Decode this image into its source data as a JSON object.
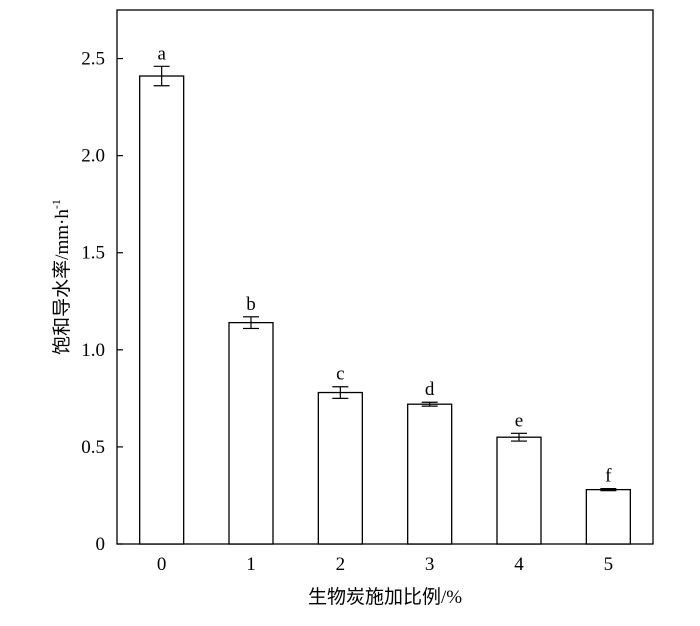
{
  "chart_data": {
    "type": "bar",
    "categories": [
      "0",
      "1",
      "2",
      "3",
      "4",
      "5"
    ],
    "values": [
      2.41,
      1.14,
      0.78,
      0.72,
      0.55,
      0.28
    ],
    "errors": [
      0.05,
      0.03,
      0.03,
      0.01,
      0.02,
      0.005
    ],
    "letters": [
      "a",
      "b",
      "c",
      "d",
      "e",
      "f"
    ],
    "color": "#ffffff",
    "xlabel": "生物炭施加比例/%",
    "ylabel": "饱和导水率/mm·h",
    "ylabel_superscript": "-1",
    "ylim": [
      0,
      2.75
    ],
    "yticks": [
      0,
      0.5,
      {
        "value": 1,
        "label": "1.0"
      },
      1.5,
      {
        "value": 2,
        "label": "2.0"
      },
      2.5
    ]
  }
}
